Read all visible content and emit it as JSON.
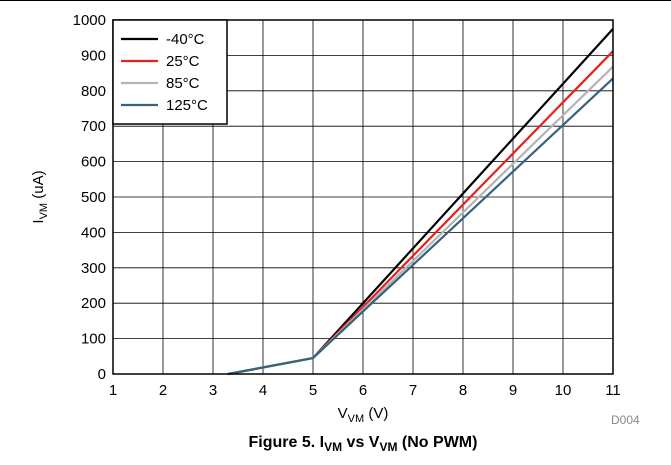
{
  "chart_data": {
    "type": "line",
    "xlabel_main": "V",
    "xlabel_sub": "VM",
    "xlabel_unit": " (V)",
    "ylabel_main": "I",
    "ylabel_sub": "VM",
    "ylabel_unit": " (uA)",
    "xlim": [
      1,
      11
    ],
    "ylim": [
      0,
      1000
    ],
    "xticks": [
      "1",
      "2",
      "3",
      "4",
      "5",
      "6",
      "7",
      "8",
      "9",
      "10",
      "11"
    ],
    "yticks": [
      "0",
      "100",
      "200",
      "300",
      "400",
      "500",
      "600",
      "700",
      "800",
      "900",
      "1000"
    ],
    "grid": true,
    "legend_position": "top-left",
    "series": [
      {
        "name": "-40°C",
        "color": "#000000",
        "x": [
          3.3,
          5,
          11
        ],
        "y": [
          0,
          45,
          975
        ]
      },
      {
        "name": "25°C",
        "color": "#e8201c",
        "x": [
          3.3,
          5,
          11
        ],
        "y": [
          0,
          45,
          912
        ]
      },
      {
        "name": "85°C",
        "color": "#b4b4b4",
        "x": [
          3.3,
          5,
          11
        ],
        "y": [
          0,
          45,
          868
        ]
      },
      {
        "name": "125°C",
        "color": "#35637e",
        "x": [
          3.3,
          5,
          11
        ],
        "y": [
          0,
          45,
          835
        ]
      }
    ],
    "annotation": "D004"
  },
  "caption": {
    "prefix": "Figure 5. I",
    "sub1": "VM",
    "mid": " vs V",
    "sub2": "VM",
    "suffix": " (No PWM)"
  }
}
